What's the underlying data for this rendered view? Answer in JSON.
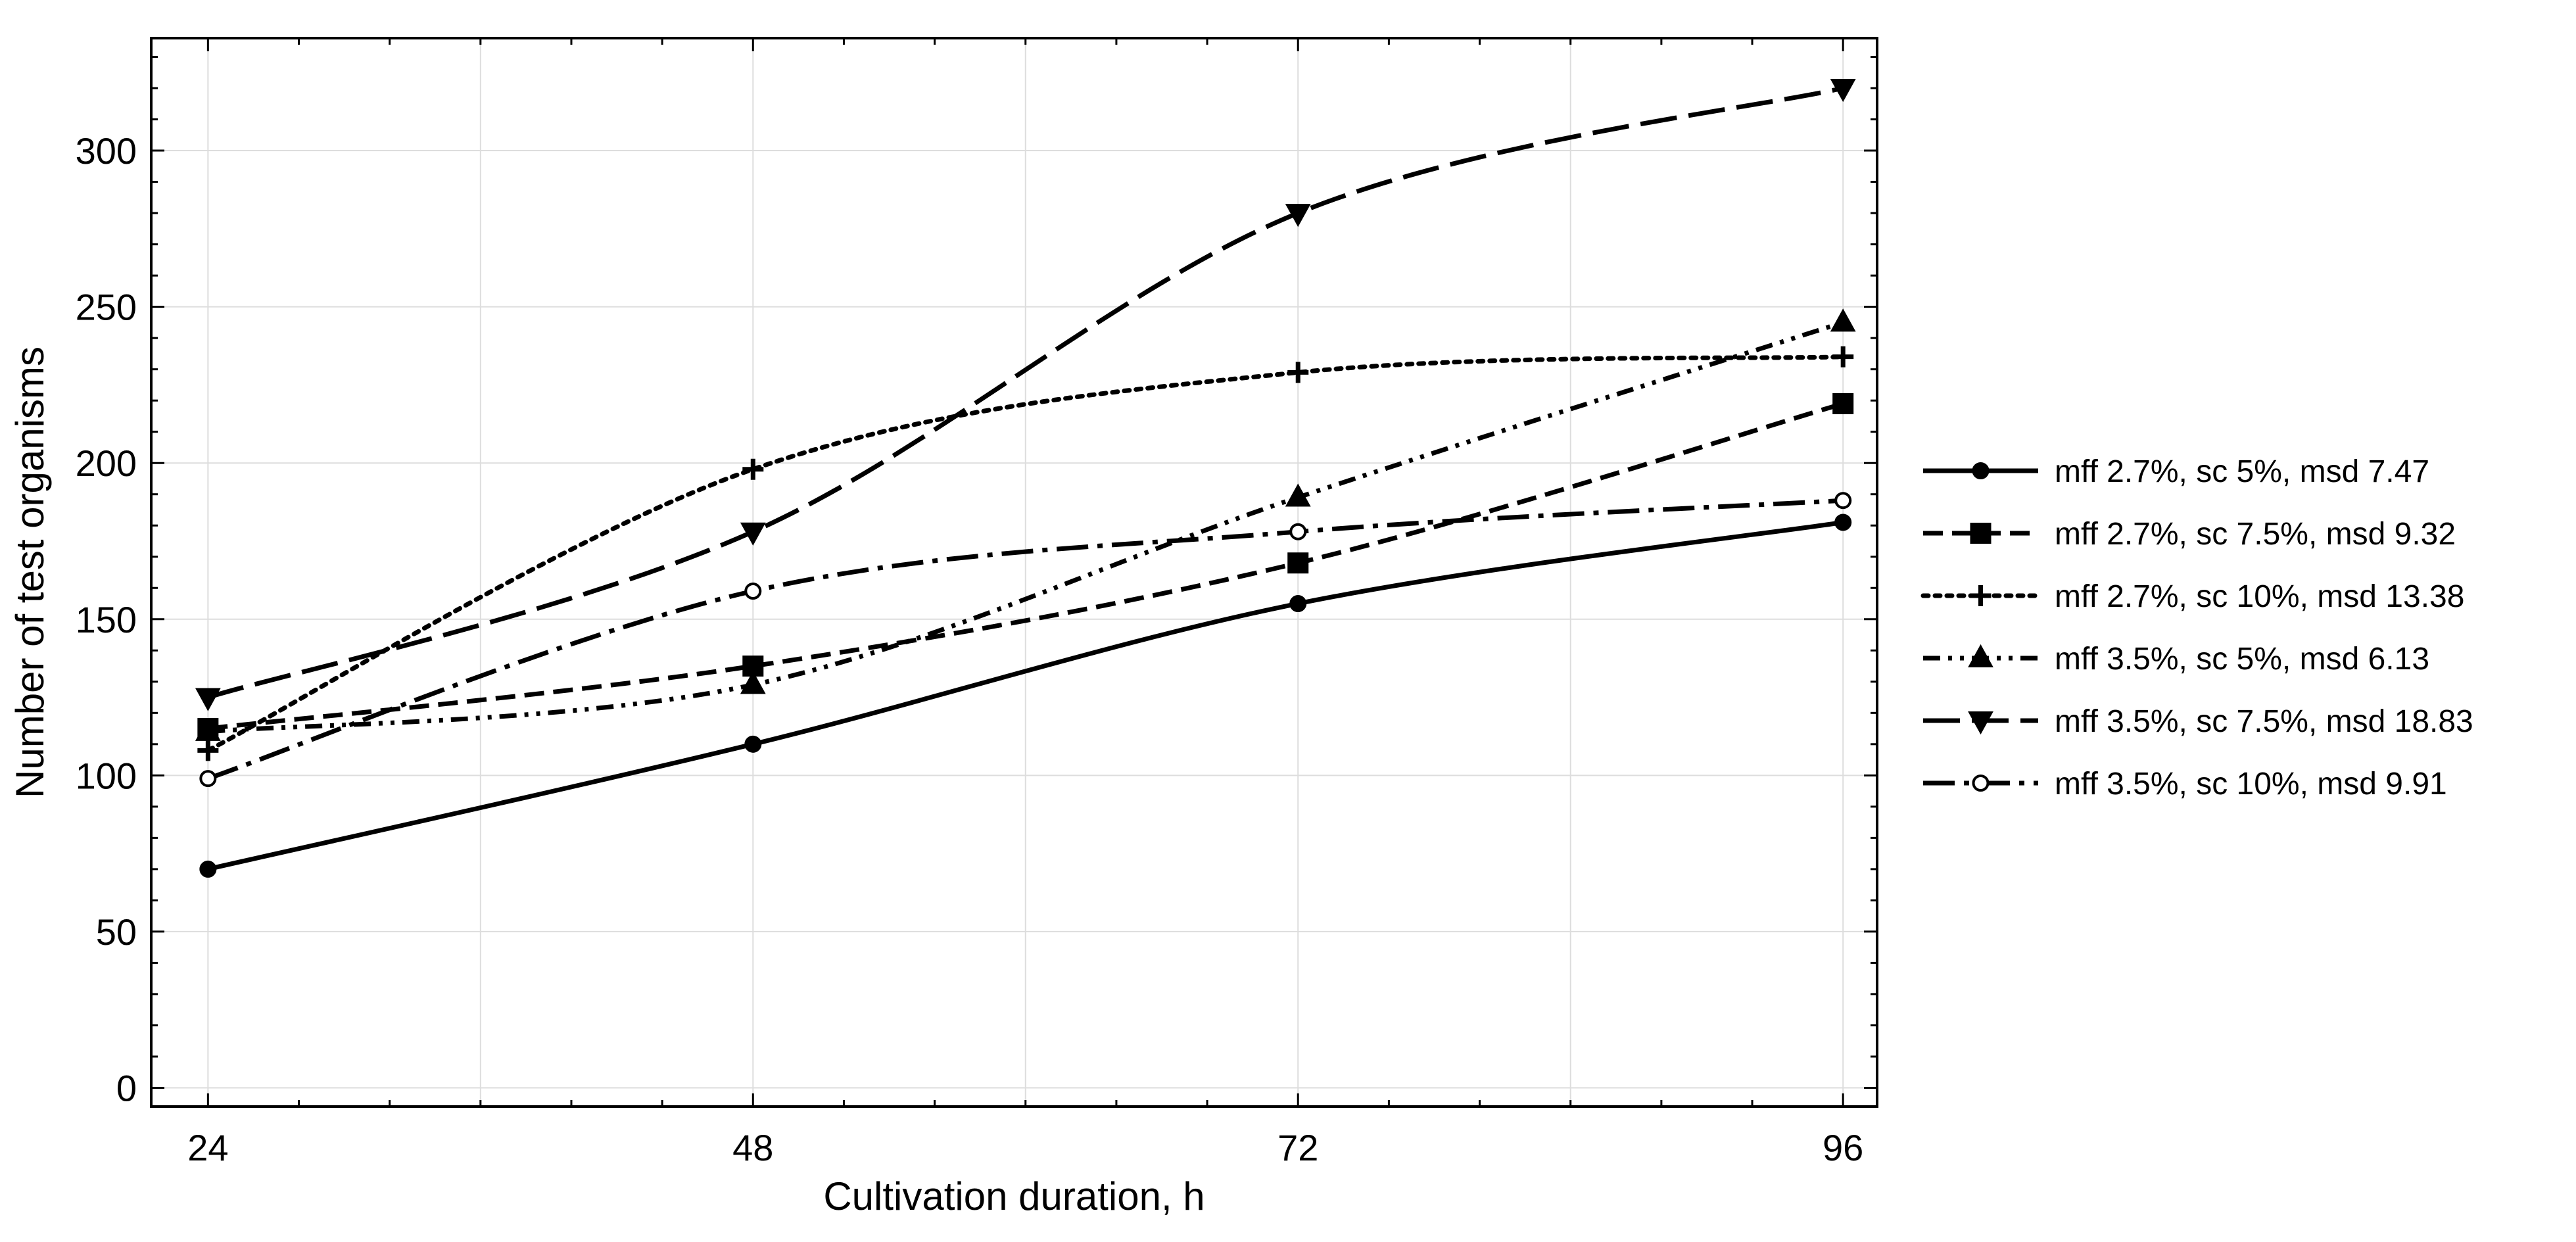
{
  "chart_data": {
    "type": "line",
    "xlabel": "Cultivation duration, h",
    "ylabel": "Number of test organisms",
    "x": [
      24,
      48,
      72,
      96
    ],
    "xlim": [
      21.5,
      97.5
    ],
    "ylim": [
      -6,
      336
    ],
    "xticks": [
      24,
      48,
      72,
      96
    ],
    "yticks": [
      0,
      50,
      100,
      150,
      200,
      250,
      300
    ],
    "grid": true,
    "legend_position": "outside-right",
    "colors": {
      "line": "#000000",
      "grid": "#dddddd",
      "frame": "#000000"
    },
    "series": [
      {
        "name": "mff 2.7%, sc 5%, msd 7.47",
        "values": [
          70,
          110,
          155,
          181
        ],
        "marker": "circle",
        "dash": "solid"
      },
      {
        "name": "mff 2.7%, sc 7.5%, msd 9.32",
        "values": [
          115,
          135,
          168,
          219
        ],
        "marker": "square",
        "dash": "dashed"
      },
      {
        "name": "mff 2.7%, sc 10%, msd 13.38",
        "values": [
          108,
          198,
          229,
          234
        ],
        "marker": "plus",
        "dash": "dotted"
      },
      {
        "name": "mff 3.5%, sc 5%, msd 6.13",
        "values": [
          114,
          129,
          189,
          245
        ],
        "marker": "triangle-up",
        "dash": "dash-dot-dot"
      },
      {
        "name": "mff 3.5%, sc 7.5%, msd 18.83",
        "values": [
          125,
          178,
          280,
          320
        ],
        "marker": "triangle-down",
        "dash": "long-dash"
      },
      {
        "name": "mff 3.5%, sc 10%, msd 9.91",
        "values": [
          99,
          159,
          178,
          188
        ],
        "marker": "circle-open",
        "dash": "long-dash-dot"
      }
    ]
  }
}
